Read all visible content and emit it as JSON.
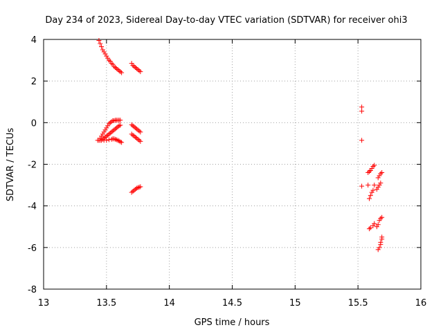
{
  "chart_data": {
    "type": "scatter",
    "title": "Day 234 of 2023, Sidereal Day-to-day VTEC variation (SDTVAR) for receiver ohi3",
    "xlabel": "GPS time / hours",
    "ylabel": "SDTVAR / TECUs",
    "xlim": [
      13,
      16
    ],
    "ylim": [
      -8,
      4
    ],
    "xticks": [
      "13",
      "13.5",
      "14",
      "14.5",
      "15",
      "15.5",
      "16"
    ],
    "yticks": [
      "-8",
      "-6",
      "-4",
      "-2",
      "0",
      "2",
      "4"
    ],
    "grid": true,
    "marker": "+",
    "color": "#ff0000",
    "series": [
      {
        "points": [
          [
            13.44,
            3.95
          ],
          [
            13.45,
            3.8
          ],
          [
            13.46,
            3.65
          ],
          [
            13.47,
            3.5
          ],
          [
            13.48,
            3.4
          ],
          [
            13.49,
            3.3
          ],
          [
            13.5,
            3.2
          ],
          [
            13.51,
            3.1
          ],
          [
            13.52,
            3.0
          ],
          [
            13.53,
            2.95
          ],
          [
            13.54,
            2.85
          ],
          [
            13.55,
            2.8
          ],
          [
            13.56,
            2.7
          ],
          [
            13.57,
            2.65
          ],
          [
            13.58,
            2.6
          ],
          [
            13.59,
            2.55
          ],
          [
            13.6,
            2.5
          ],
          [
            13.61,
            2.45
          ],
          [
            13.62,
            2.4
          ],
          [
            13.7,
            2.85
          ],
          [
            13.71,
            2.75
          ],
          [
            13.72,
            2.7
          ],
          [
            13.73,
            2.65
          ],
          [
            13.74,
            2.6
          ],
          [
            13.75,
            2.55
          ],
          [
            13.76,
            2.5
          ],
          [
            13.77,
            2.45
          ],
          [
            13.43,
            -0.85
          ],
          [
            13.45,
            -0.75
          ],
          [
            13.46,
            -0.65
          ],
          [
            13.47,
            -0.55
          ],
          [
            13.48,
            -0.45
          ],
          [
            13.49,
            -0.35
          ],
          [
            13.5,
            -0.25
          ],
          [
            13.51,
            -0.15
          ],
          [
            13.52,
            -0.05
          ],
          [
            13.53,
            0.0
          ],
          [
            13.54,
            0.05
          ],
          [
            13.55,
            0.1
          ],
          [
            13.56,
            0.1
          ],
          [
            13.57,
            0.12
          ],
          [
            13.58,
            0.12
          ],
          [
            13.59,
            0.12
          ],
          [
            13.6,
            0.12
          ],
          [
            13.61,
            0.12
          ],
          [
            13.45,
            -0.85
          ],
          [
            13.47,
            -0.8
          ],
          [
            13.48,
            -0.75
          ],
          [
            13.49,
            -0.7
          ],
          [
            13.5,
            -0.65
          ],
          [
            13.51,
            -0.6
          ],
          [
            13.52,
            -0.55
          ],
          [
            13.53,
            -0.5
          ],
          [
            13.54,
            -0.45
          ],
          [
            13.55,
            -0.4
          ],
          [
            13.56,
            -0.35
          ],
          [
            13.57,
            -0.3
          ],
          [
            13.58,
            -0.25
          ],
          [
            13.59,
            -0.2
          ],
          [
            13.6,
            -0.15
          ],
          [
            13.61,
            -0.12
          ],
          [
            13.44,
            -0.85
          ],
          [
            13.46,
            -0.85
          ],
          [
            13.48,
            -0.85
          ],
          [
            13.5,
            -0.85
          ],
          [
            13.52,
            -0.82
          ],
          [
            13.54,
            -0.8
          ],
          [
            13.55,
            -0.78
          ],
          [
            13.56,
            -0.78
          ],
          [
            13.57,
            -0.8
          ],
          [
            13.58,
            -0.82
          ],
          [
            13.59,
            -0.85
          ],
          [
            13.6,
            -0.88
          ],
          [
            13.61,
            -0.92
          ],
          [
            13.62,
            -0.95
          ],
          [
            13.7,
            -0.1
          ],
          [
            13.71,
            -0.15
          ],
          [
            13.72,
            -0.2
          ],
          [
            13.73,
            -0.25
          ],
          [
            13.74,
            -0.3
          ],
          [
            13.75,
            -0.35
          ],
          [
            13.76,
            -0.4
          ],
          [
            13.77,
            -0.45
          ],
          [
            13.7,
            -0.55
          ],
          [
            13.71,
            -0.6
          ],
          [
            13.72,
            -0.65
          ],
          [
            13.73,
            -0.7
          ],
          [
            13.74,
            -0.75
          ],
          [
            13.75,
            -0.8
          ],
          [
            13.76,
            -0.85
          ],
          [
            13.77,
            -0.9
          ],
          [
            13.7,
            -3.35
          ],
          [
            13.71,
            -3.3
          ],
          [
            13.72,
            -3.25
          ],
          [
            13.73,
            -3.2
          ],
          [
            13.74,
            -3.15
          ],
          [
            13.75,
            -3.12
          ],
          [
            13.76,
            -3.1
          ],
          [
            13.77,
            -3.08
          ],
          [
            15.53,
            0.75
          ],
          [
            15.53,
            0.55
          ],
          [
            15.53,
            -0.85
          ],
          [
            15.53,
            -3.05
          ],
          [
            15.58,
            -3.0
          ],
          [
            15.59,
            -3.65
          ],
          [
            15.6,
            -3.5
          ],
          [
            15.61,
            -3.35
          ],
          [
            15.62,
            -3.25
          ],
          [
            15.63,
            -3.0
          ],
          [
            15.65,
            -3.2
          ],
          [
            15.66,
            -3.1
          ],
          [
            15.67,
            -3.0
          ],
          [
            15.68,
            -2.9
          ],
          [
            15.58,
            -2.4
          ],
          [
            15.59,
            -2.35
          ],
          [
            15.6,
            -2.3
          ],
          [
            15.61,
            -2.2
          ],
          [
            15.62,
            -2.1
          ],
          [
            15.63,
            -2.05
          ],
          [
            15.66,
            -2.65
          ],
          [
            15.67,
            -2.55
          ],
          [
            15.68,
            -2.45
          ],
          [
            15.69,
            -2.4
          ],
          [
            15.59,
            -5.1
          ],
          [
            15.6,
            -5.05
          ],
          [
            15.62,
            -4.95
          ],
          [
            15.63,
            -4.85
          ],
          [
            15.65,
            -5.0
          ],
          [
            15.66,
            -4.9
          ],
          [
            15.67,
            -4.7
          ],
          [
            15.68,
            -4.6
          ],
          [
            15.69,
            -4.55
          ],
          [
            15.66,
            -6.1
          ],
          [
            15.67,
            -6.0
          ],
          [
            15.68,
            -5.85
          ],
          [
            15.68,
            -5.75
          ],
          [
            15.69,
            -5.6
          ],
          [
            15.69,
            -5.5
          ]
        ]
      }
    ]
  }
}
